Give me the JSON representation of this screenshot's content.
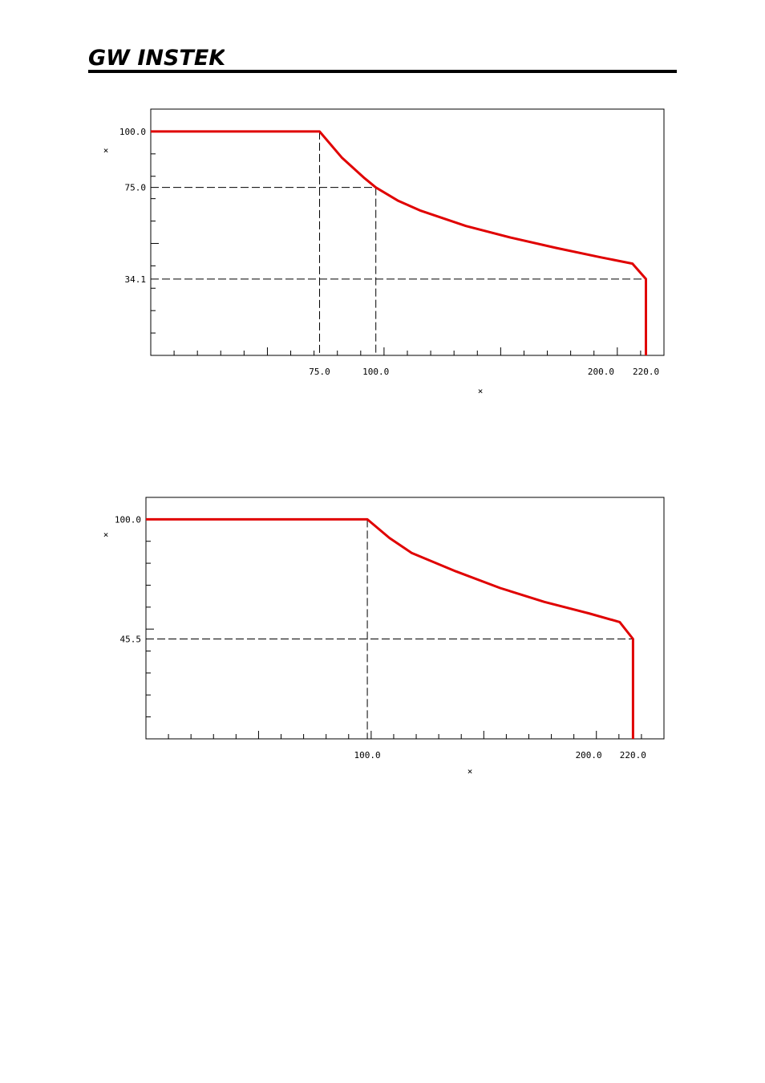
{
  "header": {
    "logo_text": "GW INSTEK",
    "brand_color": "#000000"
  },
  "chart_data": [
    {
      "type": "line",
      "series": [
        {
          "color": "#e00000",
          "x": [
            0,
            75,
            85,
            95,
            100,
            110,
            120,
            140,
            160,
            180,
            200,
            214,
            220,
            220
          ],
          "y": [
            100,
            100,
            88.2,
            79.1,
            75.0,
            69.0,
            64.6,
            57.8,
            52.6,
            48.0,
            43.8,
            41.0,
            34.1,
            0
          ]
        }
      ],
      "reference_lines": [
        {
          "x": 75.0,
          "y": 100.0
        },
        {
          "x": 100.0,
          "y": 75.0
        },
        {
          "x": 220.0,
          "y": 34.1
        }
      ],
      "xlim": [
        0,
        228
      ],
      "ylim": [
        0,
        110
      ],
      "xtick_labels": [
        "75.0",
        "100.0",
        "200.0",
        "220.0"
      ],
      "xtick_values": [
        75,
        100,
        200,
        220
      ],
      "ytick_labels": [
        "100.0",
        "75.0",
        "34.1"
      ],
      "ytick_values": [
        100,
        75,
        34.1
      ],
      "xlabel": "×",
      "ylabel": "×",
      "grid": false
    },
    {
      "type": "line",
      "series": [
        {
          "color": "#e00000",
          "x": [
            0,
            100,
            110,
            120,
            140,
            160,
            180,
            200,
            214,
            220,
            220
          ],
          "y": [
            100,
            100,
            91.5,
            84.7,
            76.3,
            68.7,
            62.4,
            57.2,
            53.2,
            45.5,
            0
          ]
        }
      ],
      "reference_lines": [
        {
          "x": 100.0,
          "y": 100.0
        },
        {
          "x": 220.0,
          "y": 45.5
        }
      ],
      "xlim": [
        0,
        234
      ],
      "ylim": [
        0,
        110
      ],
      "xtick_labels": [
        "100.0",
        "200.0",
        "220.0"
      ],
      "xtick_values": [
        100,
        200,
        220
      ],
      "ytick_labels": [
        "100.0",
        "45.5"
      ],
      "ytick_values": [
        100,
        45.5
      ],
      "xlabel": "×",
      "ylabel": "×",
      "grid": false
    }
  ]
}
